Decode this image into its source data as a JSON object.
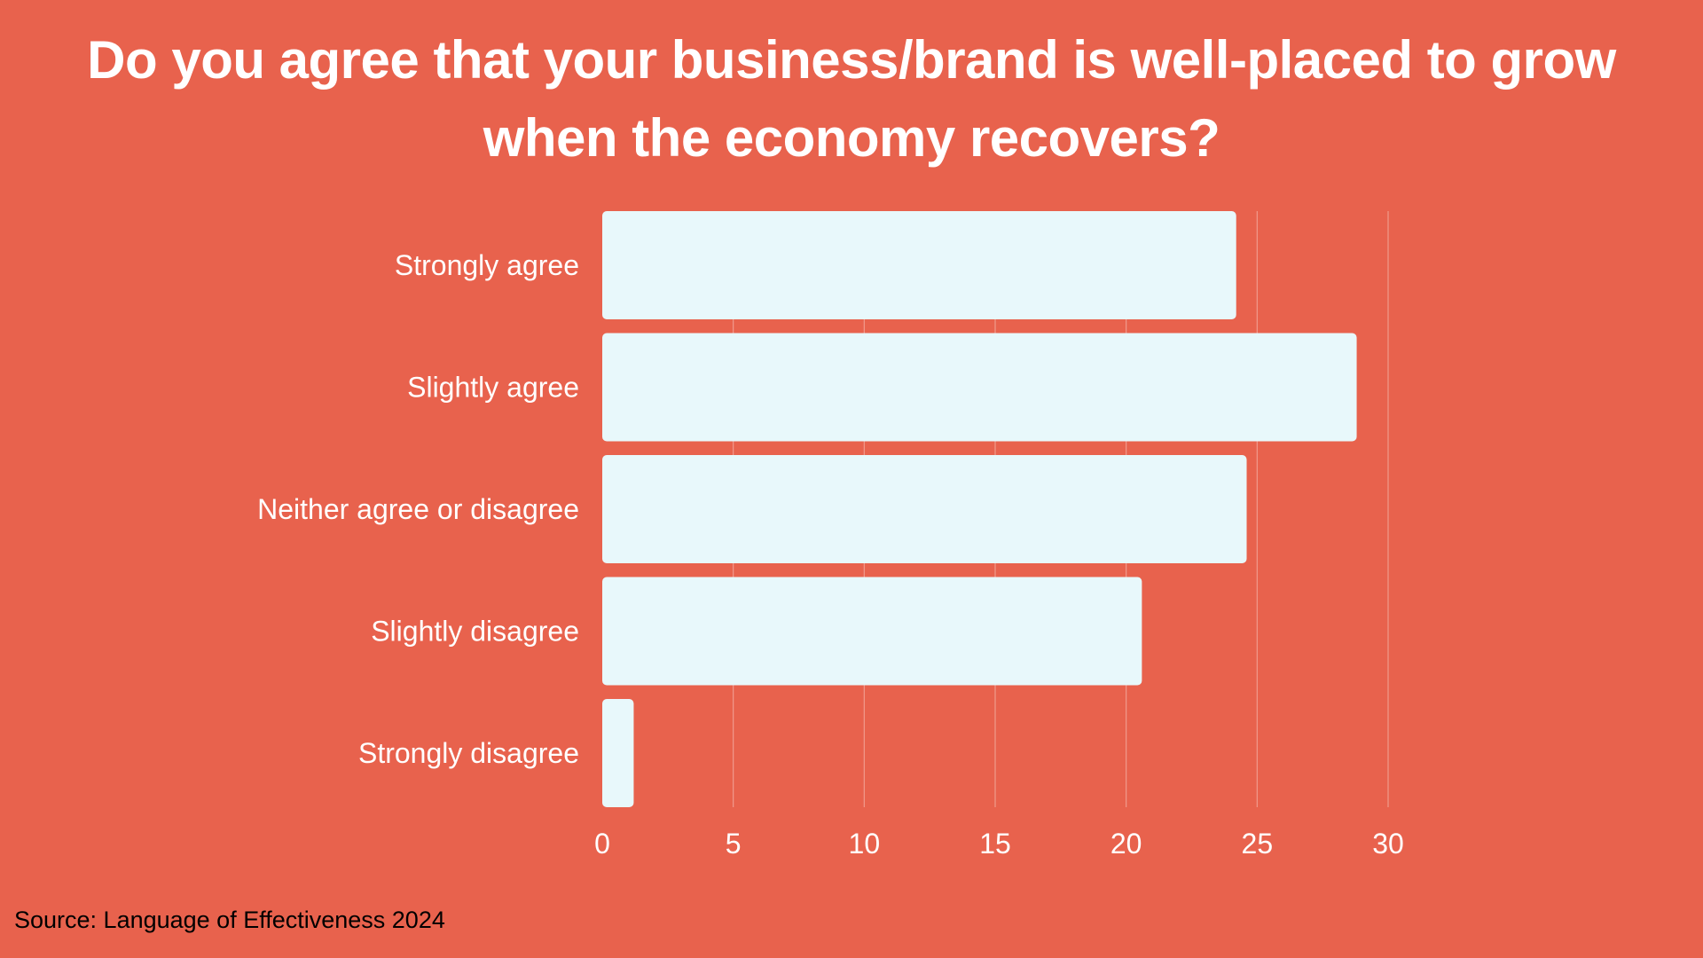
{
  "chart_data": {
    "type": "bar",
    "orientation": "horizontal",
    "title": "Do you agree that your business/brand is well-placed to grow when the economy recovers?",
    "categories": [
      "Strongly agree",
      "Slightly agree",
      "Neither agree or disagree",
      "Slightly disagree",
      "Strongly disagree"
    ],
    "values": [
      24.2,
      28.8,
      24.6,
      20.6,
      1.2
    ],
    "xlim": [
      0,
      30
    ],
    "xticks": [
      0,
      5,
      10,
      15,
      20,
      25,
      30
    ],
    "xticks_labels": [
      "0",
      "5",
      "10",
      "15",
      "20",
      "25",
      "30"
    ],
    "xlabel": "",
    "ylabel": "",
    "grid": true,
    "legend": "none"
  },
  "source": "Source: Language of Effectiveness 2024",
  "colors": {
    "background": "#E8624D",
    "bar": "#E8F8FB",
    "text": "#ffffff",
    "grid": "#F09A8C",
    "source_text": "#000000"
  }
}
